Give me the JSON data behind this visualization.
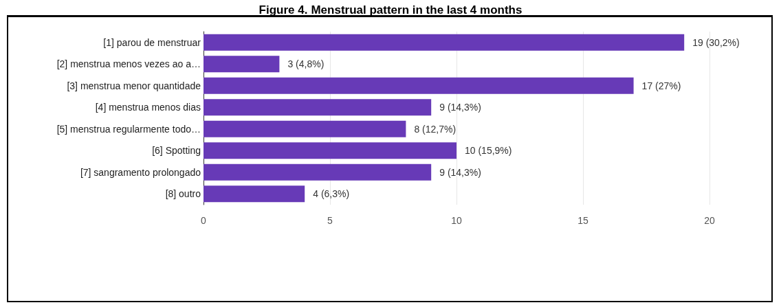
{
  "chart_data": {
    "type": "bar",
    "orientation": "horizontal",
    "title": "Figure 4. Menstrual pattern in the last 4 months",
    "categories": [
      "[1] parou de menstruar",
      "[2] menstrua menos vezes ao a…",
      "[3] menstrua menor quantidade",
      "[4] menstrua menos dias",
      "[5] menstrua regularmente todo…",
      "[6] Spotting",
      "[7] sangramento prolongado",
      "[8] outro"
    ],
    "values": [
      19,
      3,
      17,
      9,
      8,
      10,
      9,
      4
    ],
    "value_labels": [
      "19 (30,2%)",
      "3 (4,8%)",
      "17 (27%)",
      "9 (14,3%)",
      "8 (12,7%)",
      "10 (15,9%)",
      "9 (14,3%)",
      "4 (6,3%)"
    ],
    "color": "#673ab7",
    "xlim": [
      0,
      20
    ],
    "xticks": [
      0,
      5,
      10,
      15,
      20
    ],
    "grid": "x"
  }
}
